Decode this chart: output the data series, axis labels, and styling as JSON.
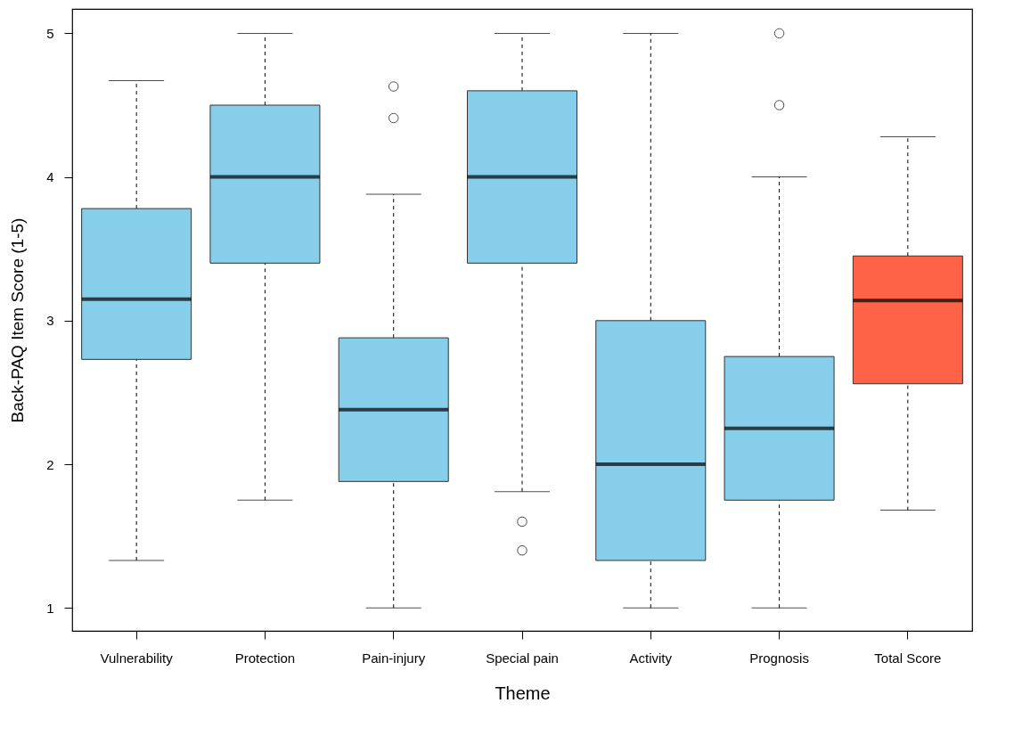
{
  "chart_data": {
    "type": "box",
    "xlabel": "Theme",
    "ylabel": "Back-PAQ Item Score (1-5)",
    "categories": [
      "Vulnerability",
      "Protection",
      "Pain-injury",
      "Special pain",
      "Activity",
      "Prognosis",
      "Total Score"
    ],
    "colors": [
      "#87ceeb",
      "#87ceeb",
      "#87ceeb",
      "#87ceeb",
      "#87ceeb",
      "#87ceeb",
      "#ff6347"
    ],
    "boxes": [
      {
        "low": 1.33,
        "q1": 2.73,
        "median": 3.15,
        "q3": 3.78,
        "high": 4.67
      },
      {
        "low": 1.75,
        "q1": 3.4,
        "median": 4,
        "q3": 4.5,
        "high": 5
      },
      {
        "low": 1,
        "q1": 1.88,
        "median": 2.38,
        "q3": 2.88,
        "high": 3.88,
        "outliers": [
          4.63,
          4.41
        ]
      },
      {
        "low": 1.81,
        "q1": 3.4,
        "median": 4,
        "q3": 4.6,
        "high": 5,
        "outliers": [
          1.6,
          1.4
        ]
      },
      {
        "low": 1,
        "q1": 1.33,
        "median": 2,
        "q3": 3,
        "high": 5
      },
      {
        "low": 1,
        "q1": 1.75,
        "median": 2.25,
        "q3": 2.75,
        "high": 4,
        "outliers": [
          5,
          4.5
        ]
      },
      {
        "low": 1.68,
        "q1": 2.56,
        "median": 3.14,
        "q3": 3.45,
        "high": 4.28
      }
    ],
    "ylim": [
      0.84,
      5.17
    ],
    "yticks": [
      1,
      2,
      3,
      4,
      5
    ],
    "grid": false,
    "legend": false
  }
}
